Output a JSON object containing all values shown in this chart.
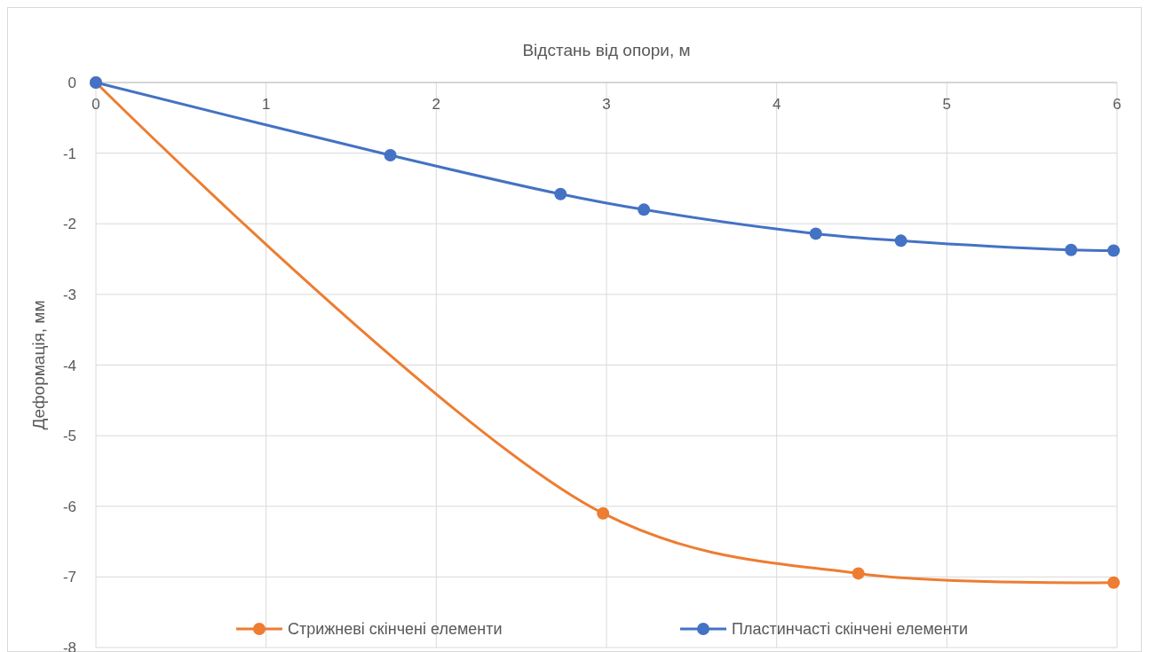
{
  "chart_data": {
    "type": "line",
    "xlabel": "Відстань від опори, м",
    "ylabel": "Деформація, мм",
    "xlim": [
      0,
      6
    ],
    "xticks": [
      0,
      1,
      2,
      3,
      4,
      5,
      6
    ],
    "ylim": [
      -8,
      0
    ],
    "yticks": [
      -8,
      -7,
      -6,
      -5,
      -4,
      -3,
      -2,
      -1,
      0
    ],
    "grid": true,
    "legend": "bottom",
    "marker": "circle",
    "line_style": "solid",
    "series": [
      {
        "name": "Стрижневі скінчені елементи",
        "color": "#ed7d31",
        "x": [
          0,
          2.98,
          4.48,
          5.98
        ],
        "values": [
          0,
          -6.1,
          -6.95,
          -7.08
        ]
      },
      {
        "name": "Пластинчасті скінчені елементи",
        "color": "#4472c4",
        "x": [
          0,
          1.73,
          2.73,
          3.22,
          4.23,
          4.73,
          5.73,
          5.98
        ],
        "values": [
          0,
          -1.03,
          -1.58,
          -1.8,
          -2.14,
          -2.24,
          -2.37,
          -2.38
        ]
      }
    ]
  }
}
